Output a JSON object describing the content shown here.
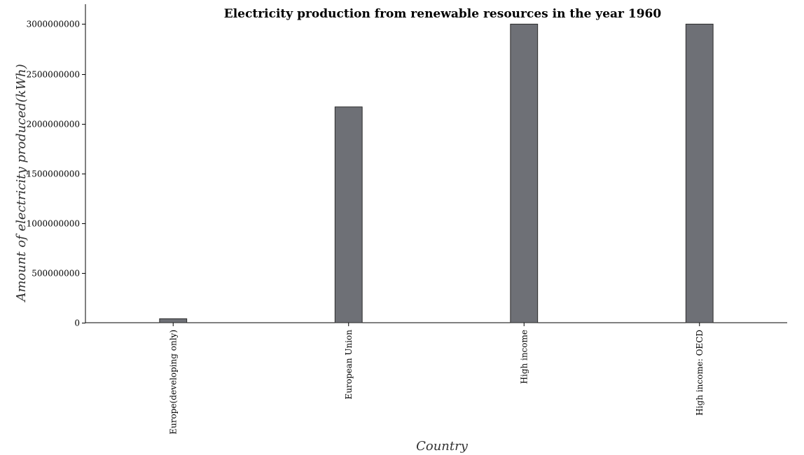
{
  "chart_data": {
    "type": "bar",
    "title": "Electricity production from renewable resources in the year 1960",
    "xlabel": "Country",
    "ylabel": "Amount of electricity produced(kWh)",
    "categories": [
      "Europe(developing only)",
      "European Union",
      "High income",
      "High income: OECD"
    ],
    "values": [
      40000000,
      2168000000,
      3000000000,
      3000000000
    ],
    "ylim": [
      0,
      3200000000
    ],
    "yticks": [
      0,
      500000000,
      1000000000,
      1500000000,
      2000000000,
      2500000000,
      3000000000
    ],
    "ytick_labels": [
      "0",
      "500000000",
      "1000000000",
      "1500000000",
      "2000000000",
      "2500000000",
      "3000000000"
    ],
    "grid": false,
    "bar_color": "#6e7076",
    "bar_edge_color": "#2b2b2b"
  }
}
